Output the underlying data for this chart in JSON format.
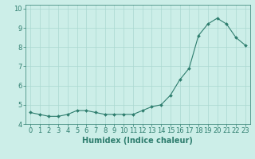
{
  "x": [
    0,
    1,
    2,
    3,
    4,
    5,
    6,
    7,
    8,
    9,
    10,
    11,
    12,
    13,
    14,
    15,
    16,
    17,
    18,
    19,
    20,
    21,
    22,
    23
  ],
  "y": [
    4.6,
    4.5,
    4.4,
    4.4,
    4.5,
    4.7,
    4.7,
    4.6,
    4.5,
    4.5,
    4.5,
    4.5,
    4.7,
    4.9,
    5.0,
    5.5,
    6.3,
    6.9,
    8.6,
    9.2,
    9.5,
    9.2,
    8.5,
    8.1
  ],
  "line_color": "#2e7d6e",
  "marker": "D",
  "marker_size": 2.0,
  "linewidth": 0.8,
  "bg_color": "#cceee8",
  "grid_color": "#aad8d0",
  "xlabel": "Humidex (Indice chaleur)",
  "xlabel_fontsize": 7,
  "tick_fontsize": 6,
  "ylim": [
    4.0,
    10.2
  ],
  "xlim": [
    -0.5,
    23.5
  ],
  "yticks": [
    4,
    5,
    6,
    7,
    8,
    9,
    10
  ],
  "xticks": [
    0,
    1,
    2,
    3,
    4,
    5,
    6,
    7,
    8,
    9,
    10,
    11,
    12,
    13,
    14,
    15,
    16,
    17,
    18,
    19,
    20,
    21,
    22,
    23
  ]
}
